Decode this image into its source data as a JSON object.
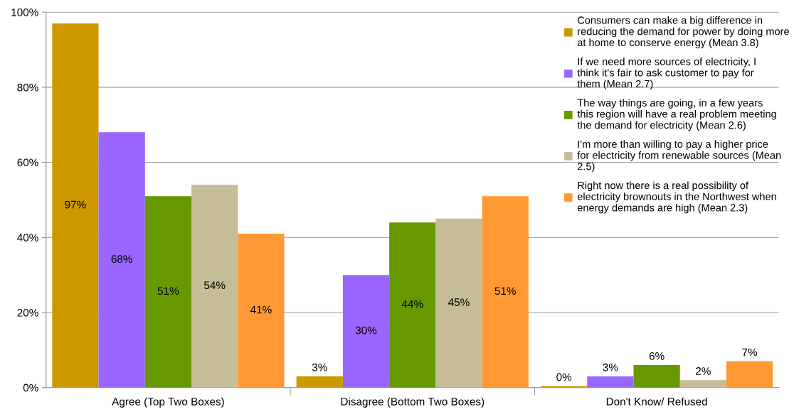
{
  "chart_data": {
    "type": "bar",
    "categories": [
      "Agree (Top Two Boxes)",
      "Disagree (Bottom Two Boxes)",
      "Don't Know/ Refused"
    ],
    "series": [
      {
        "name": "Consumers can make a big difference in reducing the demand for power by doing more at home to conserve energy (Mean 3.8)",
        "color": "#cc9900",
        "values": [
          97,
          3,
          0.4
        ],
        "value_labels": [
          "97%",
          "3%",
          "0%"
        ]
      },
      {
        "name": "If we need more sources of electricity, I think it's fair to ask customer to pay for them (Mean 2.7)",
        "color": "#9966ff",
        "values": [
          68,
          30,
          3
        ],
        "value_labels": [
          "68%",
          "30%",
          "3%"
        ]
      },
      {
        "name": "The way things are going, in a few years this region will have a real problem meeting the demand for electricity (Mean 2.6)",
        "color": "#669900",
        "values": [
          51,
          44,
          6
        ],
        "value_labels": [
          "51%",
          "44%",
          "6%"
        ]
      },
      {
        "name": "I'm more than willing to pay a higher price for electricity from renewable sources (Mean 2.5)",
        "color": "#c4bd97",
        "values": [
          54,
          45,
          2
        ],
        "value_labels": [
          "54%",
          "45%",
          "2%"
        ]
      },
      {
        "name": "Right now there is a real possibility of electricity brownouts in the Northwest when energy demands are high (Mean 2.3)",
        "color": "#ff9933",
        "values": [
          41,
          51,
          7
        ],
        "value_labels": [
          "41%",
          "51%",
          "7%"
        ]
      }
    ],
    "ylim": [
      0,
      100
    ],
    "yticks": [
      {
        "value": 0,
        "label": "0%"
      },
      {
        "value": 20,
        "label": "20%"
      },
      {
        "value": 40,
        "label": "40%"
      },
      {
        "value": 60,
        "label": "60%"
      },
      {
        "value": 80,
        "label": "80%"
      },
      {
        "value": 100,
        "label": "100%"
      }
    ],
    "grid": "y",
    "legend": "top right"
  }
}
